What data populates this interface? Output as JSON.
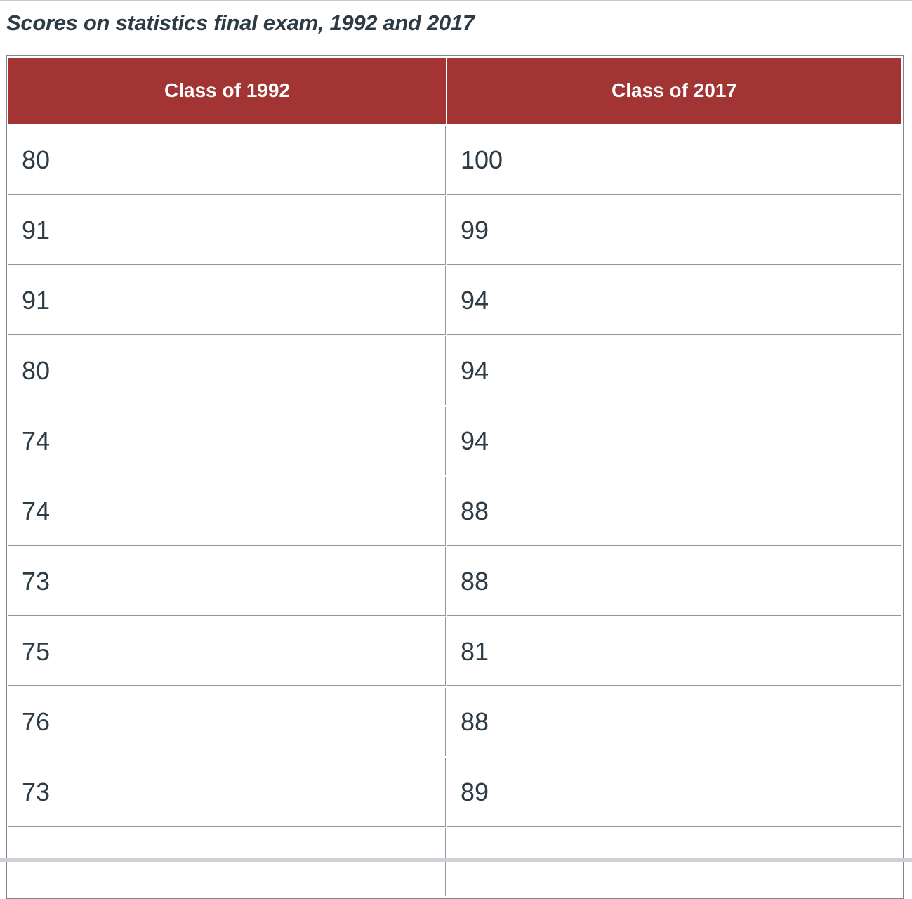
{
  "page": {
    "title": "Scores on statistics final exam, 1992 and 2017"
  },
  "table": {
    "columns": [
      "Class of 1992",
      "Class of 2017"
    ],
    "rows": [
      [
        "80",
        "100"
      ],
      [
        "91",
        "99"
      ],
      [
        "91",
        "94"
      ],
      [
        "80",
        "94"
      ],
      [
        "74",
        "94"
      ],
      [
        "74",
        "88"
      ],
      [
        "73",
        "88"
      ],
      [
        "75",
        "81"
      ],
      [
        "76",
        "88"
      ],
      [
        "73",
        "89"
      ]
    ]
  },
  "chart_data": {
    "type": "table",
    "title": "Scores on statistics final exam, 1992 and 2017",
    "columns": [
      "Class of 1992",
      "Class of 2017"
    ],
    "series": [
      {
        "name": "Class of 1992",
        "values": [
          80,
          91,
          91,
          80,
          74,
          74,
          73,
          75,
          76,
          73
        ]
      },
      {
        "name": "Class of 2017",
        "values": [
          100,
          99,
          94,
          94,
          94,
          88,
          88,
          81,
          88,
          89
        ]
      }
    ],
    "layout_hints": {
      "header_background": "#a23434",
      "header_text_color": "#ffffff",
      "body_text_color": "#2d3b45",
      "border_color": "#8f959b",
      "partial_extra_row_visible_at_bottom": true
    }
  },
  "colors": {
    "header_background": "#a23434",
    "header_text": "#ffffff",
    "body_text": "#2d3b45",
    "outer_border": "#7e858a",
    "inner_border": "#8f959b",
    "top_rule": "#c3c8cc",
    "bottom_band": "#cdd1d5"
  }
}
